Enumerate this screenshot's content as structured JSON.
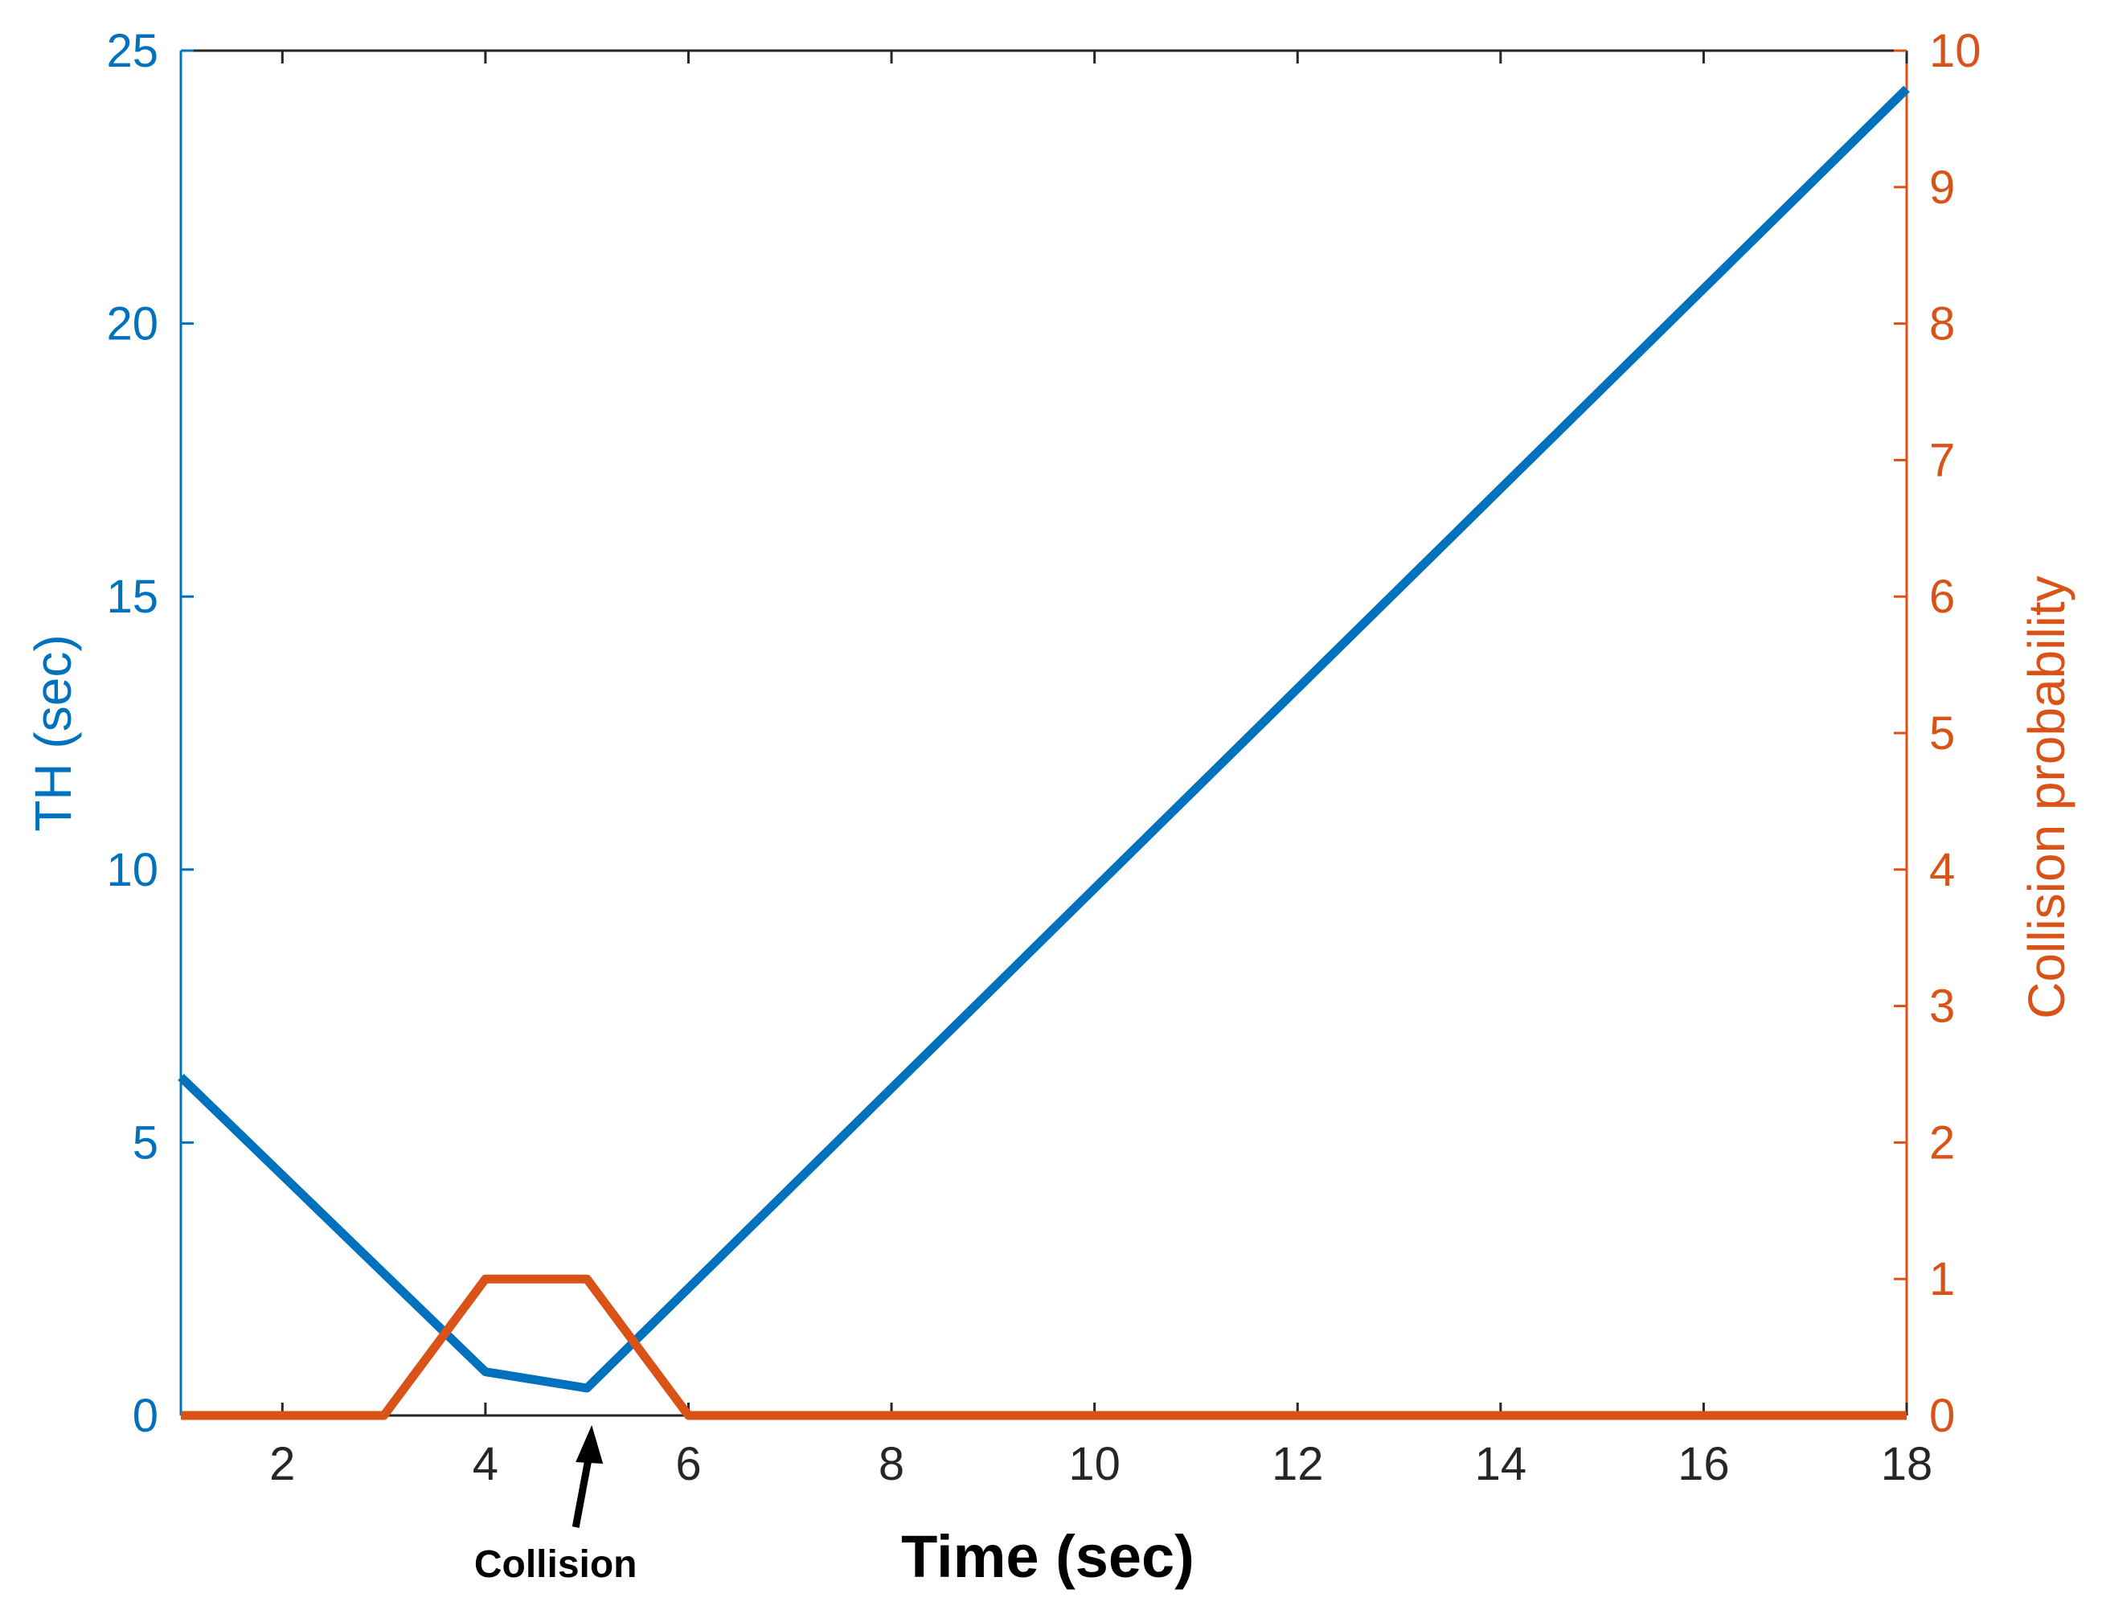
{
  "chart_data": {
    "type": "line",
    "title": "",
    "xlabel": "Time (sec)",
    "ylabel_left": "TH (sec)",
    "ylabel_right": "Collision probability",
    "xlim": [
      1,
      18
    ],
    "ylim_left": [
      0,
      25
    ],
    "ylim_right": [
      0,
      10
    ],
    "x_ticks": [
      2,
      4,
      6,
      8,
      10,
      12,
      14,
      16,
      18
    ],
    "y_ticks_left": [
      0,
      5,
      10,
      15,
      20,
      25
    ],
    "y_ticks_right": [
      0,
      1,
      2,
      3,
      4,
      5,
      6,
      7,
      8,
      9,
      10
    ],
    "grid": false,
    "colors": {
      "left": "#0072BD",
      "right": "#D95319",
      "axis": "#262626"
    },
    "series": [
      {
        "axis": "left",
        "color": "#0072BD",
        "x": [
          1,
          4,
          5,
          18
        ],
        "y": [
          6.2,
          0.8,
          0.5,
          24.3
        ]
      },
      {
        "axis": "right",
        "color": "#D95319",
        "x": [
          1,
          3,
          4,
          5,
          6,
          18
        ],
        "y": [
          0,
          0,
          1,
          1,
          0,
          0
        ]
      }
    ],
    "annotations": [
      {
        "text": "Collision",
        "arrow_to_x": 5,
        "arrow_to_y_left": 0
      }
    ]
  }
}
